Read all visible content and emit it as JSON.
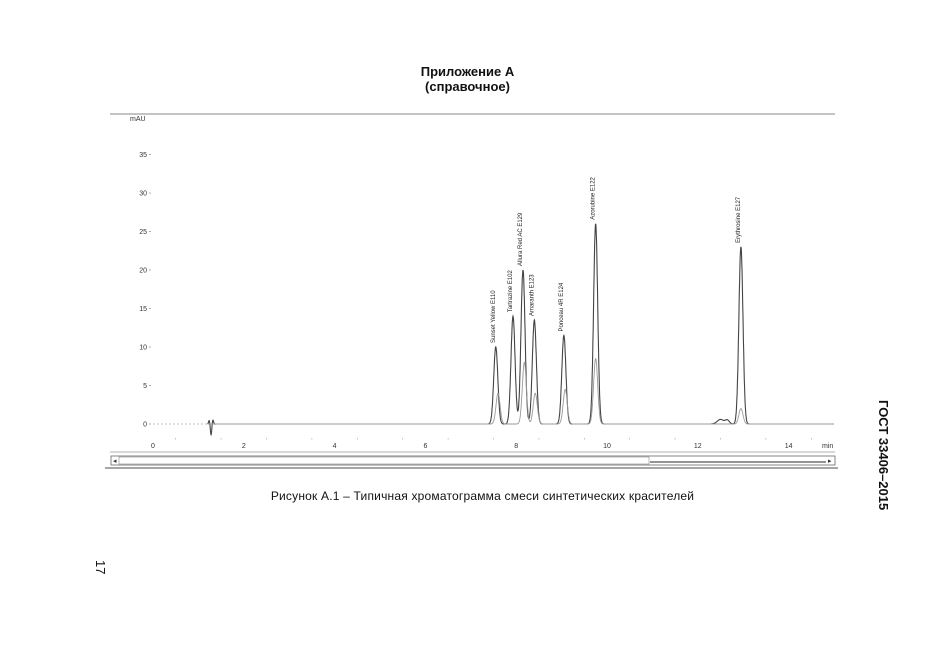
{
  "header": {
    "line1": "Приложение А",
    "line2": "(справочное)"
  },
  "caption": "Рисунок А.1 – Типичная хроматограмма смеси синтетических красителей",
  "standard": "ГОСТ 33406–2015",
  "page_number": "17",
  "chart_data": {
    "type": "line",
    "ylabel": "mAU",
    "xlabel": "min",
    "xlim": [
      0,
      15
    ],
    "ylim": [
      -1,
      40
    ],
    "x_ticks": [
      0,
      2,
      4,
      6,
      8,
      10,
      12,
      14
    ],
    "y_ticks": [
      0,
      5,
      10,
      15,
      20,
      25,
      30,
      35
    ],
    "grid": false,
    "series": [
      {
        "color": "#444444",
        "peaks": [
          {
            "x": 7.55,
            "y": 10.0
          },
          {
            "x": 7.93,
            "y": 14.0
          },
          {
            "x": 8.15,
            "y": 20.0
          },
          {
            "x": 8.4,
            "y": 13.5
          },
          {
            "x": 9.05,
            "y": 11.5
          },
          {
            "x": 9.75,
            "y": 26.0
          },
          {
            "x": 12.95,
            "y": 23.0
          }
        ]
      },
      {
        "color": "#999999",
        "peaks": [
          {
            "x": 7.6,
            "y": 4.0
          },
          {
            "x": 8.18,
            "y": 8.0
          },
          {
            "x": 8.42,
            "y": 4.0
          },
          {
            "x": 9.08,
            "y": 4.5
          },
          {
            "x": 9.75,
            "y": 8.5
          },
          {
            "x": 12.95,
            "y": 2.0
          }
        ]
      }
    ],
    "annotations": [
      {
        "x": 7.55,
        "y": 10.0,
        "text": "Sunset Yellow E110"
      },
      {
        "x": 7.93,
        "y": 14.0,
        "text": "Tartrazine E102"
      },
      {
        "x": 8.15,
        "y": 20.0,
        "text": "Allura Red AC E129"
      },
      {
        "x": 8.4,
        "y": 13.5,
        "text": "Amaranth E123"
      },
      {
        "x": 9.05,
        "y": 11.5,
        "text": "Ponceau 4R E124"
      },
      {
        "x": 9.75,
        "y": 26.0,
        "text": "Azorubine E122"
      },
      {
        "x": 12.95,
        "y": 23.0,
        "text": "Erythrosine E127"
      }
    ]
  }
}
